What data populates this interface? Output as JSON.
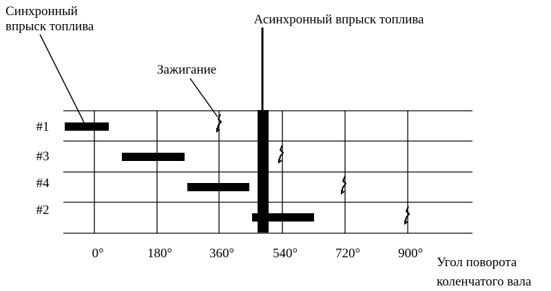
{
  "labels": {
    "sync_injection": [
      "Синхронный",
      "впрыск топлива"
    ],
    "async_injection": "Асинхронный впрыск топлива",
    "ignition": "Зажигание",
    "cylinders": [
      "#1",
      "#3",
      "#4",
      "#2"
    ],
    "angles": [
      "0°",
      "180°",
      "360°",
      "540°",
      "720°",
      "900°"
    ],
    "axis_title": [
      "Угол поворота",
      "коленчатого вала"
    ]
  }
}
